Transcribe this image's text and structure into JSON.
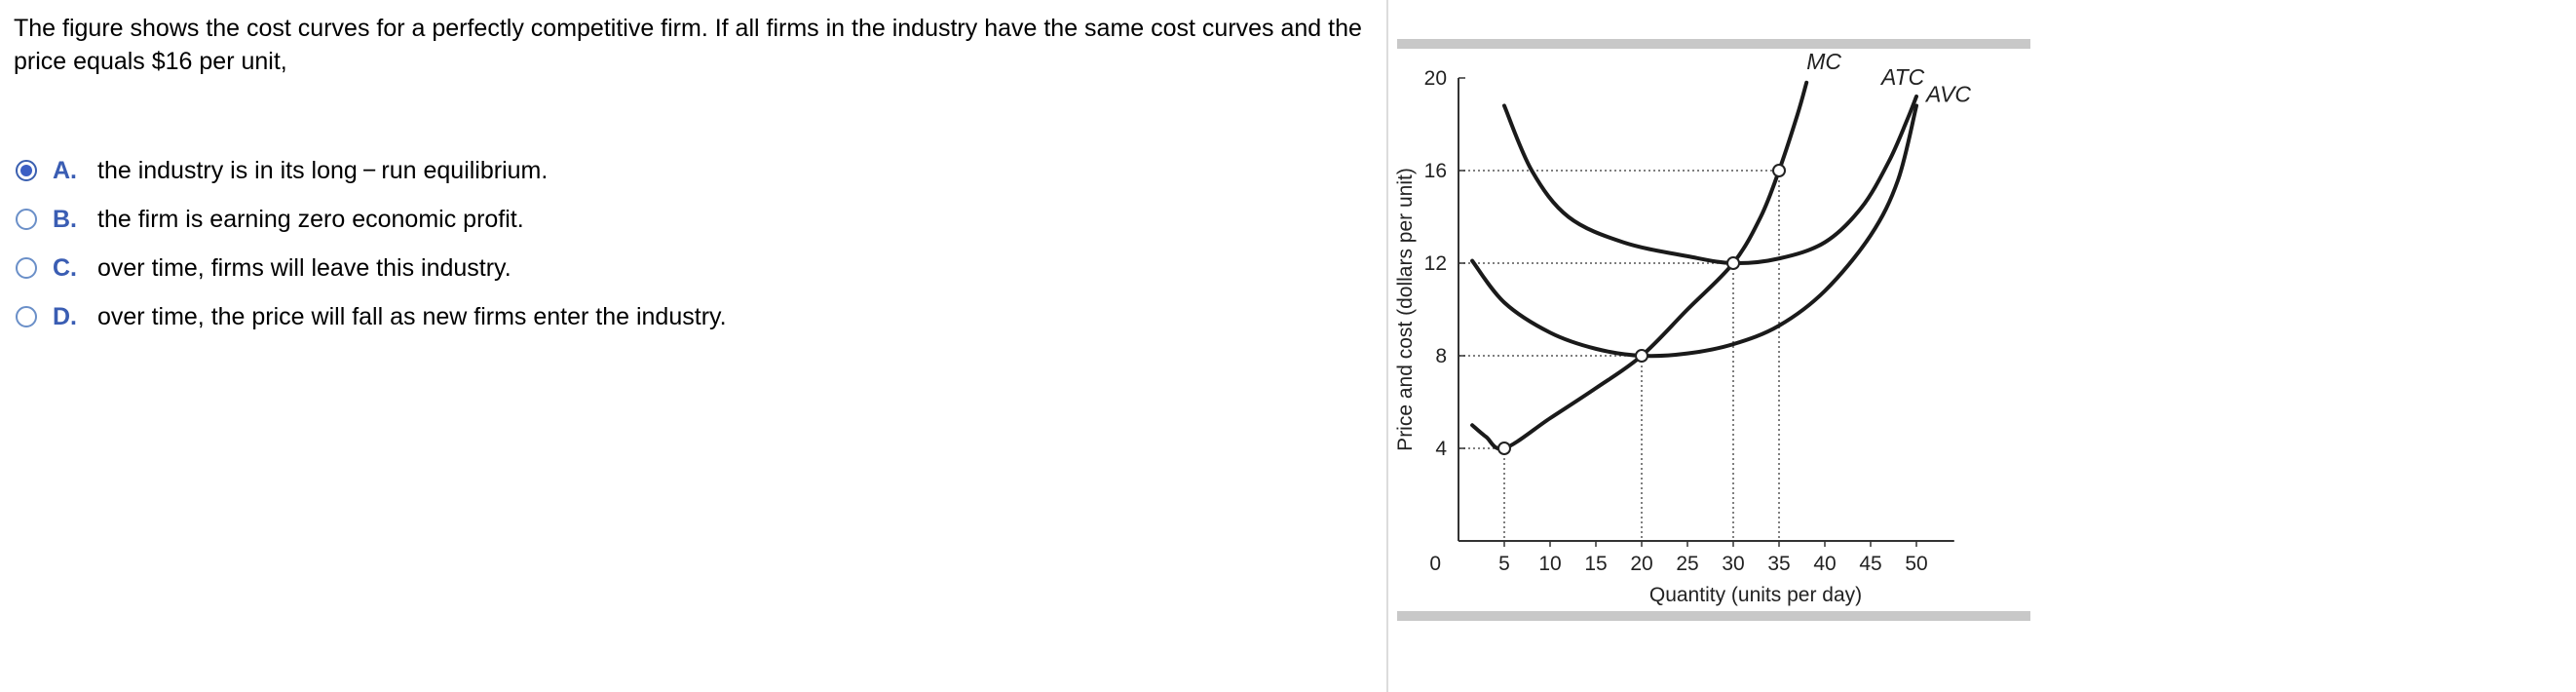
{
  "question": {
    "text": "The figure shows the cost curves for a perfectly competitive firm. If all firms in the industry have the same cost curves and the price equals $16 per unit,"
  },
  "options": [
    {
      "letter": "A.",
      "text": "the industry is in its long − run equilibrium.",
      "selected": true
    },
    {
      "letter": "B.",
      "text": "the firm is earning zero economic profit.",
      "selected": false
    },
    {
      "letter": "C.",
      "text": "over time, firms will leave this industry.",
      "selected": false
    },
    {
      "letter": "D.",
      "text": "over time, the price will fall as new firms enter the industry.",
      "selected": false
    }
  ],
  "colors": {
    "accent": "#3a5db3",
    "curve": "#1a1a1a",
    "frame_bar": "#c8c8c8"
  },
  "chart_data": {
    "type": "line",
    "xlabel": "Quantity (units per day)",
    "ylabel": "Price and cost (dollars per unit)",
    "xlim": [
      0,
      52
    ],
    "ylim": [
      0,
      20
    ],
    "x_ticks": [
      5,
      10,
      15,
      20,
      25,
      30,
      35,
      40,
      45,
      50
    ],
    "y_ticks": [
      4,
      8,
      12,
      16,
      20
    ],
    "origin_label": "0",
    "series": [
      {
        "name": "MC",
        "points": [
          [
            1.5,
            5.0
          ],
          [
            3,
            4.5
          ],
          [
            5,
            4
          ],
          [
            10,
            5.3
          ],
          [
            15,
            6.6
          ],
          [
            20,
            8
          ],
          [
            25,
            10
          ],
          [
            30,
            12
          ],
          [
            33,
            14
          ],
          [
            35,
            16
          ],
          [
            37,
            18.4
          ],
          [
            38,
            19.8
          ]
        ]
      },
      {
        "name": "ATC",
        "points": [
          [
            5,
            18.8
          ],
          [
            8,
            16
          ],
          [
            12,
            14
          ],
          [
            18,
            12.9
          ],
          [
            25,
            12.3
          ],
          [
            30,
            12
          ],
          [
            35,
            12.2
          ],
          [
            40,
            12.9
          ],
          [
            44,
            14.4
          ],
          [
            47,
            16.4
          ],
          [
            49,
            18.2
          ],
          [
            50,
            19.2
          ]
        ]
      },
      {
        "name": "AVC",
        "points": [
          [
            1.5,
            12.1
          ],
          [
            5,
            10.3
          ],
          [
            10,
            9
          ],
          [
            15,
            8.3
          ],
          [
            20,
            8
          ],
          [
            25,
            8.1
          ],
          [
            30,
            8.5
          ],
          [
            35,
            9.3
          ],
          [
            40,
            10.8
          ],
          [
            45,
            13.2
          ],
          [
            48,
            15.6
          ],
          [
            50,
            18.8
          ]
        ]
      }
    ],
    "markers": [
      [
        5,
        4
      ],
      [
        20,
        8
      ],
      [
        30,
        12
      ],
      [
        35,
        16
      ]
    ],
    "guides": [
      {
        "x": 5,
        "y": 4
      },
      {
        "x": 20,
        "y": 8
      },
      {
        "x": 30,
        "y": 12
      },
      {
        "x": 35,
        "y": 16
      }
    ]
  }
}
